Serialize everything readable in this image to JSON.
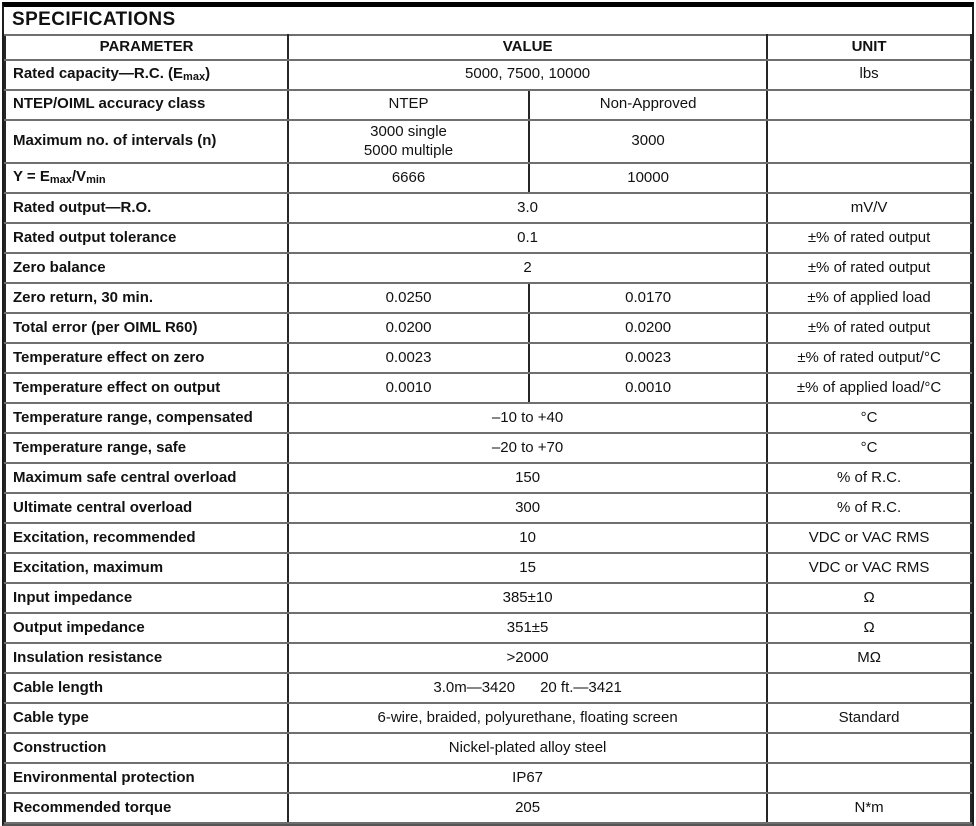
{
  "title": "SPECIFICATIONS",
  "columns": {
    "parameter": "PARAMETER",
    "value": "VALUE",
    "unit": "UNIT"
  },
  "colors": {
    "border_vertical": "#262626",
    "border_horizontal": "#6f6f6f",
    "top_bar": "#000000",
    "text": "#111111",
    "background": "#ffffff"
  },
  "rows": [
    {
      "param": [
        {
          "t": "Rated capacity—R.C. (E"
        },
        {
          "t": "max",
          "sub": true
        },
        {
          "t": ")"
        }
      ],
      "value": {
        "type": "single",
        "text": "5000, 7500, 10000"
      },
      "unit": "lbs"
    },
    {
      "param": [
        {
          "t": "NTEP/OIML accuracy class"
        }
      ],
      "value": {
        "type": "split",
        "left": "NTEP",
        "right": "Non-Approved"
      },
      "unit": ""
    },
    {
      "param": [
        {
          "t": "Maximum no. of intervals (n)"
        }
      ],
      "value": {
        "type": "split",
        "left": "3000 single\n5000 multiple",
        "right": "3000"
      },
      "unit": ""
    },
    {
      "param": [
        {
          "t": "Y = E"
        },
        {
          "t": "max",
          "sub": true
        },
        {
          "t": "/V"
        },
        {
          "t": "min",
          "sub": true
        }
      ],
      "value": {
        "type": "split",
        "left": "6666",
        "right": "10000"
      },
      "unit": ""
    },
    {
      "param": [
        {
          "t": "Rated output—R.O."
        }
      ],
      "value": {
        "type": "single",
        "text": "3.0"
      },
      "unit": "mV/V"
    },
    {
      "param": [
        {
          "t": "Rated output tolerance"
        }
      ],
      "value": {
        "type": "single",
        "text": "0.1"
      },
      "unit": "±% of rated output"
    },
    {
      "param": [
        {
          "t": "Zero balance"
        }
      ],
      "value": {
        "type": "single",
        "text": "2"
      },
      "unit": "±% of rated output"
    },
    {
      "param": [
        {
          "t": "Zero return, 30 min."
        }
      ],
      "value": {
        "type": "split",
        "left": "0.0250",
        "right": "0.0170"
      },
      "unit": "±% of applied load"
    },
    {
      "param": [
        {
          "t": "Total error (per OIML R60)"
        }
      ],
      "value": {
        "type": "split",
        "left": "0.0200",
        "right": "0.0200"
      },
      "unit": "±% of rated output"
    },
    {
      "param": [
        {
          "t": "Temperature effect on zero"
        }
      ],
      "value": {
        "type": "split",
        "left": "0.0023",
        "right": "0.0023"
      },
      "unit": "±% of rated output/°C"
    },
    {
      "param": [
        {
          "t": "Temperature effect on output"
        }
      ],
      "value": {
        "type": "split",
        "left": "0.0010",
        "right": "0.0010"
      },
      "unit": "±% of applied load/°C"
    },
    {
      "param": [
        {
          "t": "Temperature range, compensated"
        }
      ],
      "value": {
        "type": "single",
        "text": "–10 to +40"
      },
      "unit": "°C"
    },
    {
      "param": [
        {
          "t": "Temperature range, safe"
        }
      ],
      "value": {
        "type": "single",
        "text": "–20 to +70"
      },
      "unit": "°C"
    },
    {
      "param": [
        {
          "t": "Maximum safe central overload"
        }
      ],
      "value": {
        "type": "single",
        "text": "150"
      },
      "unit": "% of R.C."
    },
    {
      "param": [
        {
          "t": "Ultimate central overload"
        }
      ],
      "value": {
        "type": "single",
        "text": "300"
      },
      "unit": "% of R.C."
    },
    {
      "param": [
        {
          "t": "Excitation, recommended"
        }
      ],
      "value": {
        "type": "single",
        "text": "10"
      },
      "unit": "VDC or VAC RMS"
    },
    {
      "param": [
        {
          "t": "Excitation, maximum"
        }
      ],
      "value": {
        "type": "single",
        "text": "15"
      },
      "unit": "VDC or VAC RMS"
    },
    {
      "param": [
        {
          "t": "Input impedance"
        }
      ],
      "value": {
        "type": "single",
        "text": "385±10"
      },
      "unit": "Ω"
    },
    {
      "param": [
        {
          "t": "Output impedance"
        }
      ],
      "value": {
        "type": "single",
        "text": "351±5"
      },
      "unit": "Ω"
    },
    {
      "param": [
        {
          "t": "Insulation resistance"
        }
      ],
      "value": {
        "type": "single",
        "text": ">2000"
      },
      "unit": "MΩ"
    },
    {
      "param": [
        {
          "t": "Cable length"
        }
      ],
      "value": {
        "type": "single",
        "text": "3.0m—3420      20 ft.—3421"
      },
      "unit": ""
    },
    {
      "param": [
        {
          "t": "Cable type"
        }
      ],
      "value": {
        "type": "single",
        "text": "6-wire, braided, polyurethane, floating screen"
      },
      "unit": "Standard"
    },
    {
      "param": [
        {
          "t": "Construction"
        }
      ],
      "value": {
        "type": "single",
        "text": "Nickel-plated alloy steel"
      },
      "unit": ""
    },
    {
      "param": [
        {
          "t": "Environmental protection"
        }
      ],
      "value": {
        "type": "single",
        "text": "IP67"
      },
      "unit": ""
    },
    {
      "param": [
        {
          "t": "Recommended torque"
        }
      ],
      "value": {
        "type": "single",
        "text": "205"
      },
      "unit": "N*m"
    }
  ]
}
